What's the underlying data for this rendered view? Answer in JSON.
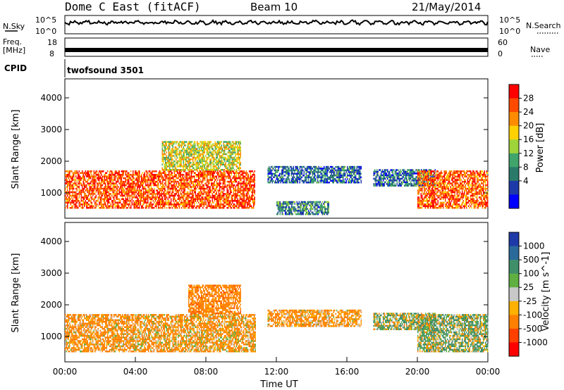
{
  "header": {
    "radar": "Dome C East (fitACF)",
    "beam": "Beam 10",
    "date": "21/May/2014"
  },
  "params": {
    "nsky_label": "N.Sky",
    "nsky_top": "10^5",
    "nsky_bot": "10^0",
    "nsearch_label": "N.Search",
    "nsearch_top": "10^5",
    "nsearch_bot": "10^0",
    "freq_label1": "Freq.",
    "freq_label2": "[MHz]",
    "freq_top": "18",
    "freq_bot": "8",
    "nave_label": "Nave",
    "nave_top": "60",
    "nave_bot": "0",
    "cpid_label": "CPID",
    "cpid_value": "twofsound 3501"
  },
  "axes": {
    "xlabel": "Time UT",
    "ylabel": "Slant Range [km]",
    "xticks": [
      "00:00",
      "04:00",
      "08:00",
      "12:00",
      "16:00",
      "20:00",
      "00:00"
    ],
    "yticks": [
      "1000",
      "2000",
      "3000",
      "4000"
    ]
  },
  "colorbars": {
    "power": {
      "label": "Power [dB]",
      "ticks": [
        "28",
        "24",
        "20",
        "16",
        "12",
        "8",
        "4"
      ],
      "colors": [
        "#ff0000",
        "#ff4a00",
        "#ff8c00",
        "#ffd000",
        "#9fd33a",
        "#3fa56a",
        "#2a7a6a",
        "#1e3aa8",
        "#0000ff"
      ]
    },
    "velocity": {
      "label": "Velocity [m s^-1]",
      "ticks": [
        "1000",
        "500",
        "100",
        "25",
        "-25",
        "-100",
        "-500",
        "-1000"
      ],
      "colors": [
        "#1e3aa8",
        "#2a6a9a",
        "#3f8f6a",
        "#5fb040",
        "#c8c8c8",
        "#ffb000",
        "#ff8000",
        "#ff4000",
        "#ff0000"
      ]
    }
  },
  "chart_data": [
    {
      "type": "heatmap",
      "title": "Power",
      "xlabel": "Time UT",
      "ylabel": "Slant Range [km]",
      "xlim": [
        0,
        24
      ],
      "ylim": [
        200,
        4600
      ],
      "colorbar_label": "Power [dB]",
      "colorbar_range": [
        0,
        32
      ],
      "regions": [
        {
          "t0": 0.0,
          "t1": 10.8,
          "r0": 500,
          "r1": 1700,
          "value": 27
        },
        {
          "t0": 5.5,
          "t1": 10.0,
          "r0": 1700,
          "r1": 2600,
          "value": 18
        },
        {
          "t0": 11.5,
          "t1": 16.8,
          "r0": 1300,
          "r1": 1800,
          "value": 8
        },
        {
          "t0": 12.0,
          "t1": 15.0,
          "r0": 300,
          "r1": 700,
          "value": 10
        },
        {
          "t0": 17.5,
          "t1": 21.0,
          "r0": 1200,
          "r1": 1700,
          "value": 8
        },
        {
          "t0": 20.0,
          "t1": 24.0,
          "r0": 500,
          "r1": 1700,
          "value": 26
        }
      ]
    },
    {
      "type": "heatmap",
      "title": "Velocity",
      "xlabel": "Time UT",
      "ylabel": "Slant Range [km]",
      "xlim": [
        0,
        24
      ],
      "ylim": [
        200,
        4600
      ],
      "colorbar_label": "Velocity [m s^-1]",
      "colorbar_range": [
        -1000,
        1000
      ],
      "regions": [
        {
          "t0": 0.0,
          "t1": 4.0,
          "r0": 500,
          "r1": 1700,
          "value": -200
        },
        {
          "t0": 4.0,
          "t1": 10.8,
          "r0": 500,
          "r1": 1700,
          "value": -150
        },
        {
          "t0": 7.0,
          "t1": 10.0,
          "r0": 1700,
          "r1": 2600,
          "value": -300
        },
        {
          "t0": 11.5,
          "t1": 16.8,
          "r0": 1300,
          "r1": 1800,
          "value": -200
        },
        {
          "t0": 17.5,
          "t1": 21.0,
          "r0": 1200,
          "r1": 1700,
          "value": 50
        },
        {
          "t0": 20.0,
          "t1": 24.0,
          "r0": 500,
          "r1": 1700,
          "value": 80
        }
      ]
    }
  ]
}
